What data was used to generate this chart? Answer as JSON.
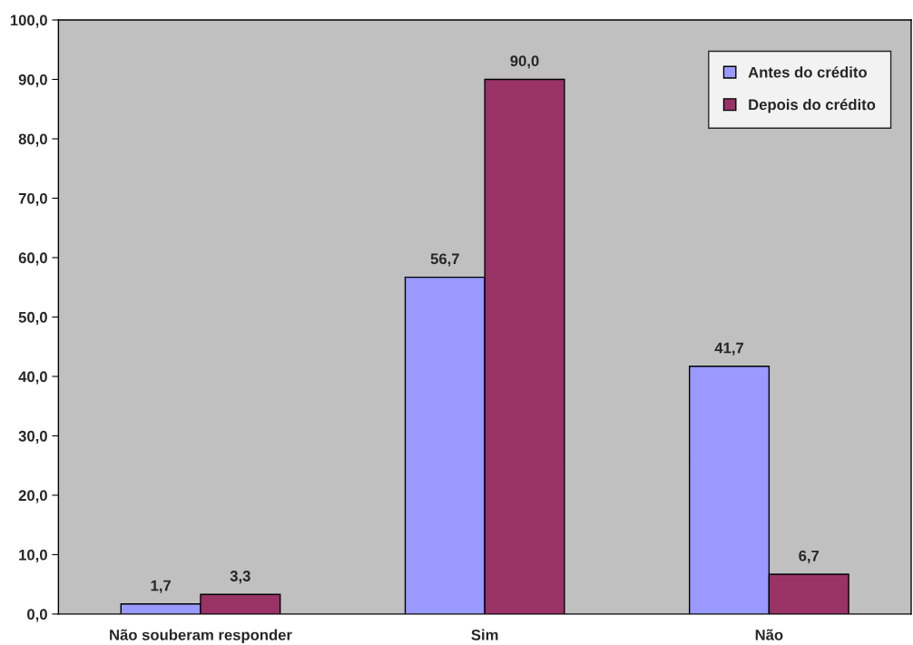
{
  "chart_data": {
    "type": "bar",
    "categories": [
      "Não souberam responder",
      "Sim",
      "Não"
    ],
    "series": [
      {
        "name": "Antes do crédito",
        "color": "#9999ff",
        "values": [
          1.7,
          56.7,
          41.7
        ],
        "value_labels": [
          "1,7",
          "56,7",
          "41,7"
        ]
      },
      {
        "name": "Depois do crédito",
        "color": "#993366",
        "values": [
          3.3,
          90.0,
          6.7
        ],
        "value_labels": [
          "3,3",
          "90,0",
          "6,7"
        ]
      }
    ],
    "ylim": [
      0,
      100
    ],
    "yticks": [
      {
        "value": 0,
        "label": "0,0"
      },
      {
        "value": 10,
        "label": "10,0"
      },
      {
        "value": 20,
        "label": "20,0"
      },
      {
        "value": 30,
        "label": "30,0"
      },
      {
        "value": 40,
        "label": "40,0"
      },
      {
        "value": 50,
        "label": "50,0"
      },
      {
        "value": 60,
        "label": "60,0"
      },
      {
        "value": 70,
        "label": "70,0"
      },
      {
        "value": 80,
        "label": "80,0"
      },
      {
        "value": 90,
        "label": "90,0"
      },
      {
        "value": 100,
        "label": "100,0"
      }
    ],
    "grid": false,
    "legend": "top right"
  }
}
